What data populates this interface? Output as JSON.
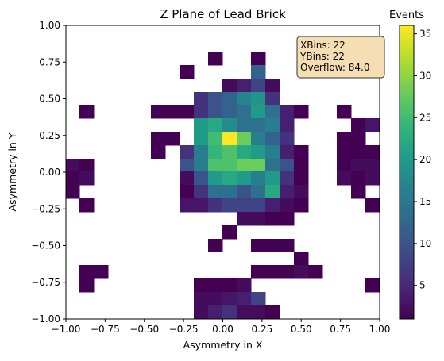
{
  "chart_data": {
    "type": "heatmap",
    "title": "Z Plane of Lead Brick",
    "xlabel": "Asymmetry in X",
    "ylabel": "Asymmetry in Y",
    "xlim": [
      -1.0,
      1.0
    ],
    "ylim": [
      -1.0,
      1.0
    ],
    "nbins_x": 22,
    "nbins_y": 22,
    "x_ticks": [
      "−1.00",
      "−0.75",
      "−0.50",
      "−0.25",
      "0.00",
      "0.25",
      "0.50",
      "0.75",
      "1.00"
    ],
    "y_ticks": [
      "−1.00",
      "−0.75",
      "−0.50",
      "−0.25",
      "0.00",
      "0.25",
      "0.50",
      "0.75",
      "1.00"
    ],
    "colorbar": {
      "label": "Events",
      "min": 1,
      "max": 36,
      "ticks": [
        "5",
        "10",
        "15",
        "20",
        "25",
        "30",
        "35"
      ],
      "colormap": "viridis"
    },
    "stats_box": {
      "placement": "top-right",
      "lines": [
        "XBins: 22",
        "YBins: 22",
        "Overflow: 84.0"
      ]
    },
    "grid": false,
    "rows_top_to_bottom": [
      [
        0,
        0,
        0,
        0,
        0,
        0,
        0,
        0,
        0,
        0,
        0,
        0,
        0,
        0,
        0,
        0,
        0,
        0,
        0,
        0,
        0,
        0
      ],
      [
        0,
        0,
        0,
        0,
        0,
        0,
        0,
        0,
        0,
        0,
        0,
        0,
        0,
        0,
        0,
        0,
        0,
        0,
        0,
        0,
        0,
        0
      ],
      [
        0,
        0,
        0,
        0,
        0,
        0,
        0,
        0,
        0,
        0,
        1,
        0,
        0,
        1,
        0,
        0,
        0,
        0,
        0,
        0,
        0,
        0
      ],
      [
        0,
        0,
        0,
        0,
        0,
        0,
        0,
        0,
        1,
        0,
        0,
        0,
        0,
        12,
        0,
        0,
        0,
        0,
        0,
        0,
        0,
        0
      ],
      [
        0,
        0,
        0,
        0,
        0,
        0,
        0,
        0,
        0,
        0,
        0,
        2,
        4,
        8,
        2,
        0,
        0,
        0,
        0,
        0,
        0,
        0
      ],
      [
        0,
        0,
        0,
        0,
        0,
        0,
        0,
        0,
        0,
        6,
        10,
        12,
        17,
        19,
        6,
        0,
        0,
        0,
        0,
        0,
        0,
        0
      ],
      [
        0,
        1,
        0,
        0,
        0,
        0,
        1,
        1,
        1,
        6,
        10,
        12,
        14,
        20,
        14,
        4,
        1,
        0,
        0,
        1,
        0,
        0
      ],
      [
        0,
        0,
        0,
        0,
        0,
        0,
        0,
        0,
        0,
        20,
        22,
        18,
        14,
        14,
        16,
        4,
        0,
        0,
        0,
        0,
        1,
        3
      ],
      [
        0,
        0,
        0,
        0,
        0,
        0,
        1,
        1,
        0,
        20,
        25,
        36,
        28,
        16,
        12,
        6,
        0,
        0,
        0,
        1,
        1,
        0
      ],
      [
        0,
        0,
        0,
        0,
        0,
        0,
        1,
        0,
        6,
        16,
        24,
        26,
        22,
        20,
        16,
        4,
        1,
        0,
        0,
        1,
        1,
        1
      ],
      [
        2,
        1,
        0,
        0,
        0,
        0,
        0,
        0,
        10,
        16,
        26,
        26,
        28,
        28,
        14,
        10,
        1,
        0,
        0,
        1,
        2,
        2
      ],
      [
        1,
        2,
        0,
        0,
        0,
        0,
        0,
        0,
        2,
        10,
        20,
        22,
        20,
        16,
        20,
        6,
        1,
        0,
        0,
        2,
        1,
        2
      ],
      [
        1,
        0,
        0,
        0,
        0,
        0,
        0,
        0,
        1,
        6,
        14,
        14,
        10,
        14,
        22,
        4,
        2,
        0,
        0,
        0,
        1,
        0
      ],
      [
        0,
        1,
        0,
        0,
        0,
        0,
        0,
        0,
        3,
        3,
        6,
        8,
        8,
        8,
        4,
        2,
        1,
        0,
        0,
        0,
        0,
        1
      ],
      [
        0,
        0,
        0,
        0,
        0,
        0,
        0,
        0,
        0,
        0,
        0,
        0,
        2,
        2,
        1,
        1,
        0,
        0,
        0,
        0,
        0,
        0
      ],
      [
        0,
        0,
        0,
        0,
        0,
        0,
        0,
        0,
        0,
        0,
        0,
        1,
        0,
        0,
        0,
        0,
        0,
        0,
        0,
        0,
        0,
        0
      ],
      [
        0,
        0,
        0,
        0,
        0,
        0,
        0,
        0,
        0,
        0,
        1,
        0,
        0,
        1,
        1,
        1,
        0,
        0,
        0,
        0,
        0,
        0
      ],
      [
        0,
        0,
        0,
        0,
        0,
        0,
        0,
        0,
        0,
        0,
        0,
        0,
        0,
        0,
        0,
        0,
        1,
        0,
        0,
        0,
        0,
        0
      ],
      [
        0,
        1,
        1,
        0,
        0,
        0,
        0,
        0,
        0,
        0,
        0,
        0,
        0,
        1,
        1,
        1,
        2,
        1,
        0,
        0,
        0,
        0
      ],
      [
        0,
        1,
        0,
        0,
        0,
        0,
        0,
        0,
        0,
        1,
        1,
        1,
        2,
        0,
        0,
        0,
        0,
        0,
        0,
        0,
        0,
        1
      ],
      [
        0,
        0,
        0,
        0,
        0,
        0,
        0,
        0,
        0,
        2,
        2,
        3,
        4,
        8,
        0,
        0,
        0,
        0,
        0,
        0,
        0,
        0
      ],
      [
        0,
        0,
        0,
        0,
        0,
        0,
        0,
        0,
        0,
        2,
        4,
        6,
        2,
        2,
        1,
        0,
        0,
        0,
        0,
        0,
        0,
        0
      ]
    ]
  }
}
